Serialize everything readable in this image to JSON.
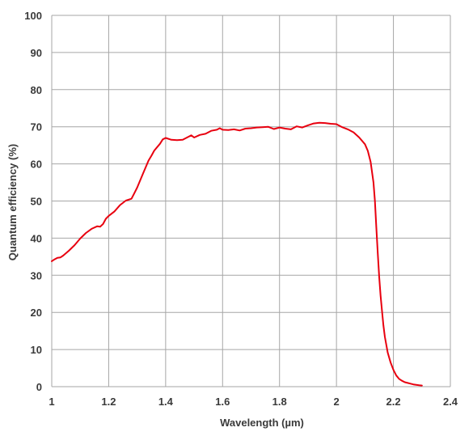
{
  "chart_data": {
    "type": "line",
    "title": "",
    "xlabel": "Wavelength (µm)",
    "ylabel": "Quantum efficiency (%)",
    "xlim": [
      1,
      2.4
    ],
    "ylim": [
      0,
      100
    ],
    "x_ticks": [
      "1",
      "1.2",
      "1.4",
      "1.6",
      "1.8",
      "2",
      "2.2",
      "2.4"
    ],
    "y_ticks": [
      "0",
      "10",
      "20",
      "30",
      "40",
      "50",
      "60",
      "70",
      "80",
      "90",
      "100"
    ],
    "grid": true,
    "line_color": "#e8000f",
    "grid_color": "#a6a6a6",
    "series": [
      {
        "x": [
          1.0,
          1.01,
          1.02,
          1.03,
          1.04,
          1.06,
          1.08,
          1.1,
          1.12,
          1.14,
          1.16,
          1.17,
          1.18,
          1.19,
          1.2,
          1.22,
          1.24,
          1.26,
          1.28,
          1.29,
          1.3,
          1.32,
          1.34,
          1.35,
          1.36,
          1.38,
          1.39,
          1.4,
          1.42,
          1.44,
          1.46,
          1.48,
          1.49,
          1.5,
          1.52,
          1.54,
          1.56,
          1.58,
          1.59,
          1.6,
          1.62,
          1.64,
          1.66,
          1.68,
          1.7,
          1.72,
          1.74,
          1.76,
          1.78,
          1.8,
          1.82,
          1.84,
          1.86,
          1.88,
          1.9,
          1.92,
          1.94,
          1.96,
          1.98,
          2.0,
          2.02,
          2.04,
          2.06,
          2.08,
          2.1,
          2.11,
          2.12,
          2.13,
          2.135,
          2.14,
          2.145,
          2.15,
          2.155,
          2.16,
          2.165,
          2.17,
          2.18,
          2.19,
          2.2,
          2.21,
          2.22,
          2.23,
          2.24,
          2.25,
          2.26,
          2.27,
          2.28,
          2.29,
          2.3
        ],
        "y": [
          33.8,
          34.3,
          34.7,
          34.8,
          35.3,
          36.6,
          38.1,
          39.9,
          41.4,
          42.5,
          43.2,
          43.1,
          43.8,
          45.2,
          46.0,
          47.2,
          48.9,
          50.1,
          50.6,
          52.1,
          53.6,
          57.3,
          60.9,
          62.2,
          63.6,
          65.4,
          66.6,
          67.0,
          66.5,
          66.4,
          66.5,
          67.3,
          67.7,
          67.1,
          67.8,
          68.1,
          68.9,
          69.2,
          69.6,
          69.2,
          69.1,
          69.3,
          69.0,
          69.5,
          69.6,
          69.8,
          69.9,
          70.0,
          69.4,
          69.8,
          69.5,
          69.3,
          70.1,
          69.8,
          70.4,
          70.9,
          71.1,
          71.0,
          70.8,
          70.7,
          69.9,
          69.3,
          68.5,
          67.1,
          65.3,
          63.5,
          60.5,
          55.0,
          50.0,
          43.0,
          36.0,
          29.5,
          24.5,
          20.3,
          16.5,
          13.4,
          9.2,
          6.5,
          4.5,
          3.0,
          2.1,
          1.6,
          1.2,
          1.0,
          0.8,
          0.6,
          0.5,
          0.4,
          0.3
        ]
      }
    ]
  }
}
